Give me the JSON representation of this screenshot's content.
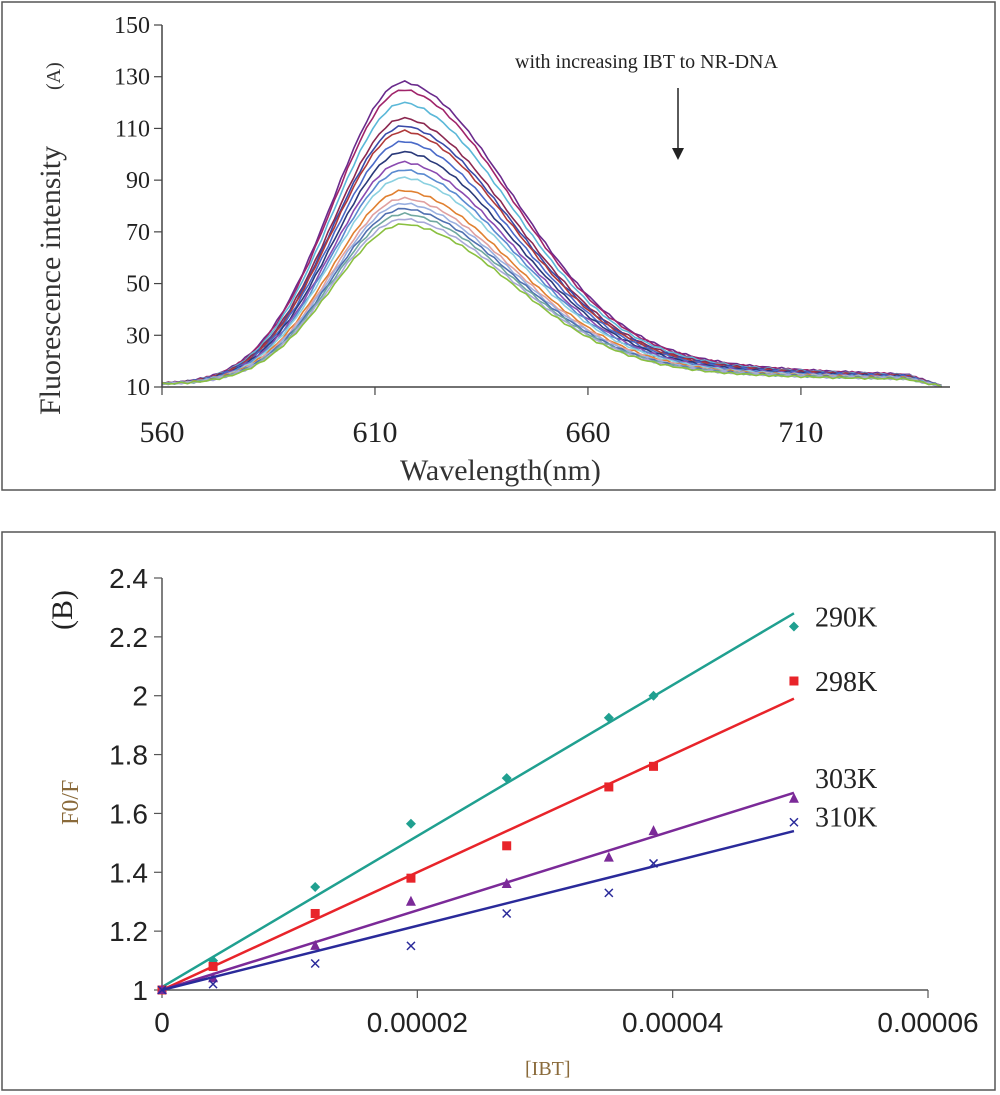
{
  "chart_data": [
    {
      "type": "line",
      "panel_label": "(A)",
      "title": "",
      "xlabel": "Wavelength(nm)",
      "ylabel": "Fluorescence intensity",
      "xlim": [
        560,
        745
      ],
      "ylim": [
        10,
        150
      ],
      "x_ticks": [
        560,
        610,
        660,
        710
      ],
      "y_ticks": [
        10,
        30,
        50,
        70,
        90,
        110,
        130,
        150
      ],
      "grid": false,
      "annotation": "with increasing IBT to NR-DNA",
      "series": [
        {
          "color": "#6a2a8c",
          "peak": 128
        },
        {
          "color": "#a0246a",
          "peak": 125
        },
        {
          "color": "#5bb8d8",
          "peak": 120
        },
        {
          "color": "#8b2850",
          "peak": 114
        },
        {
          "color": "#3a4aa8",
          "peak": 111
        },
        {
          "color": "#b03a3a",
          "peak": 109
        },
        {
          "color": "#4a6ac8",
          "peak": 105
        },
        {
          "color": "#2a3a7a",
          "peak": 101
        },
        {
          "color": "#8a4ab0",
          "peak": 97
        },
        {
          "color": "#5a8ad0",
          "peak": 94
        },
        {
          "color": "#8ad0e0",
          "peak": 91
        },
        {
          "color": "#e08030",
          "peak": 86
        },
        {
          "color": "#e0a0a0",
          "peak": 83
        },
        {
          "color": "#9ab0e0",
          "peak": 81
        },
        {
          "color": "#5070b0",
          "peak": 79
        },
        {
          "color": "#70a8a0",
          "peak": 77
        },
        {
          "color": "#a8a8d8",
          "peak": 75
        },
        {
          "color": "#8ac040",
          "peak": 73
        }
      ]
    },
    {
      "type": "scatter",
      "panel_label": "(B)",
      "title": "",
      "xlabel": "[IBT]",
      "ylabel": "F0/F",
      "xlim": [
        0,
        6e-05
      ],
      "ylim": [
        1,
        2.4
      ],
      "x_ticks": [
        "0",
        "0.00002",
        "0.00004",
        "0.00006"
      ],
      "y_ticks": [
        "1",
        "1.2",
        "1.4",
        "1.6",
        "1.8",
        "2",
        "2.2",
        "2.4"
      ],
      "grid": false,
      "series": [
        {
          "name": "290K",
          "color": "#20a090",
          "marker": "diamond",
          "x": [
            0,
            4e-06,
            1.2e-05,
            1.95e-05,
            2.7e-05,
            3.5e-05,
            3.85e-05,
            4.95e-05
          ],
          "y": [
            1.0,
            1.1,
            1.35,
            1.565,
            1.72,
            1.925,
            2.0,
            2.235
          ],
          "fit": [
            1.01,
            2.28
          ]
        },
        {
          "name": "298K",
          "color": "#e8242a",
          "marker": "square",
          "x": [
            0,
            4e-06,
            1.2e-05,
            1.95e-05,
            2.7e-05,
            3.5e-05,
            3.85e-05,
            4.95e-05
          ],
          "y": [
            1.0,
            1.08,
            1.26,
            1.38,
            1.49,
            1.69,
            1.76,
            2.05
          ],
          "fit": [
            1.0,
            1.99
          ]
        },
        {
          "name": "303K",
          "color": "#7b2a98",
          "marker": "triangle",
          "x": [
            0,
            4e-06,
            1.2e-05,
            1.95e-05,
            2.7e-05,
            3.5e-05,
            3.85e-05,
            4.95e-05
          ],
          "y": [
            1.0,
            1.04,
            1.15,
            1.3,
            1.36,
            1.45,
            1.54,
            1.65
          ],
          "fit": [
            1.0,
            1.67
          ]
        },
        {
          "name": "310K",
          "color": "#2a2a9a",
          "marker": "x",
          "x": [
            0,
            4e-06,
            1.2e-05,
            1.95e-05,
            2.7e-05,
            3.5e-05,
            3.85e-05,
            4.95e-05
          ],
          "y": [
            1.0,
            1.02,
            1.09,
            1.15,
            1.26,
            1.33,
            1.43,
            1.57
          ],
          "fit": [
            1.0,
            1.54
          ]
        }
      ]
    }
  ]
}
